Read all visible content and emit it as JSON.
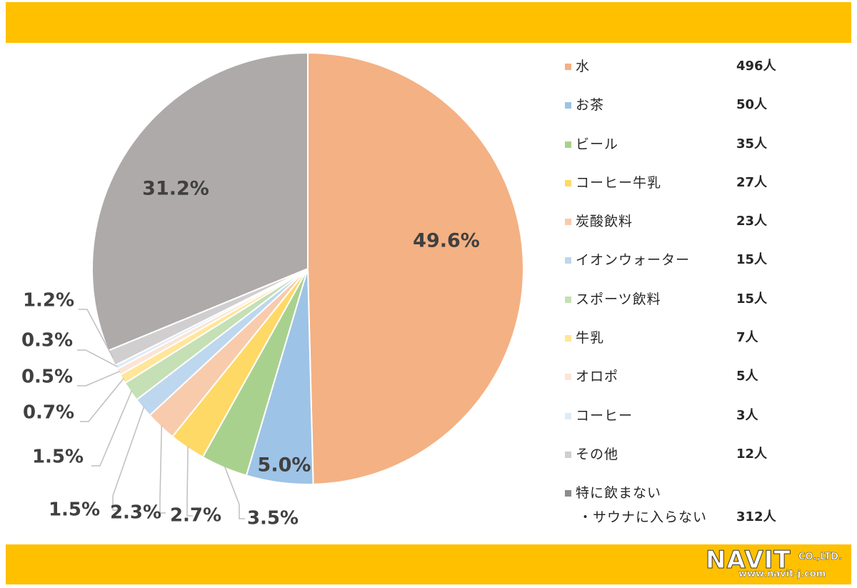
{
  "chart_data": {
    "type": "pie",
    "start_angle": "12 o'clock",
    "direction": "clockwise",
    "legend_position": "right",
    "slices": [
      {
        "label": "水",
        "count": "496人",
        "percent": 49.6,
        "percent_label": "49.6%",
        "color": "#F4B183"
      },
      {
        "label": "お茶",
        "count": "50人",
        "percent": 5.0,
        "percent_label": "5.0%",
        "color": "#9DC3E6"
      },
      {
        "label": "ビール",
        "count": "35人",
        "percent": 3.5,
        "percent_label": "3.5%",
        "color": "#A9D18E"
      },
      {
        "label": "コーヒー牛乳",
        "count": "27人",
        "percent": 2.7,
        "percent_label": "2.7%",
        "color": "#FFD966"
      },
      {
        "label": "炭酸飲料",
        "count": "23人",
        "percent": 2.3,
        "percent_label": "2.3%",
        "color": "#F8CBAD"
      },
      {
        "label": "イオンウォーター",
        "count": "15人",
        "percent": 1.5,
        "percent_label": "1.5%",
        "color": "#BDD7EE"
      },
      {
        "label": "スポーツ飲料",
        "count": "15人",
        "percent": 1.5,
        "percent_label": "1.5%",
        "color": "#C5E0B4"
      },
      {
        "label": "牛乳",
        "count": "7人",
        "percent": 0.7,
        "percent_label": "0.7%",
        "color": "#FFE699"
      },
      {
        "label": "オロポ",
        "count": "5人",
        "percent": 0.5,
        "percent_label": "0.5%",
        "color": "#FBE5D6"
      },
      {
        "label": "コーヒー",
        "count": "3人",
        "percent": 0.3,
        "percent_label": "0.3%",
        "color": "#DEEBF7"
      },
      {
        "label": "その他",
        "count": "12人",
        "percent": 1.2,
        "percent_label": "1.2%",
        "color": "#D0CECE"
      },
      {
        "label": "特に飲まない",
        "label2": "・サウナに入らない",
        "count": "312人",
        "percent": 31.2,
        "percent_label": "31.2%",
        "color": "#AEAAAA"
      }
    ]
  },
  "colors": {
    "band": "#FFC000",
    "slice_border": "#ffffff",
    "leader_line": "#BFBFBF",
    "label_text": "#404040"
  },
  "logo": {
    "main": "NAVIT",
    "suffix": "CO.,LTD.",
    "url": "www.navit-j.com"
  }
}
